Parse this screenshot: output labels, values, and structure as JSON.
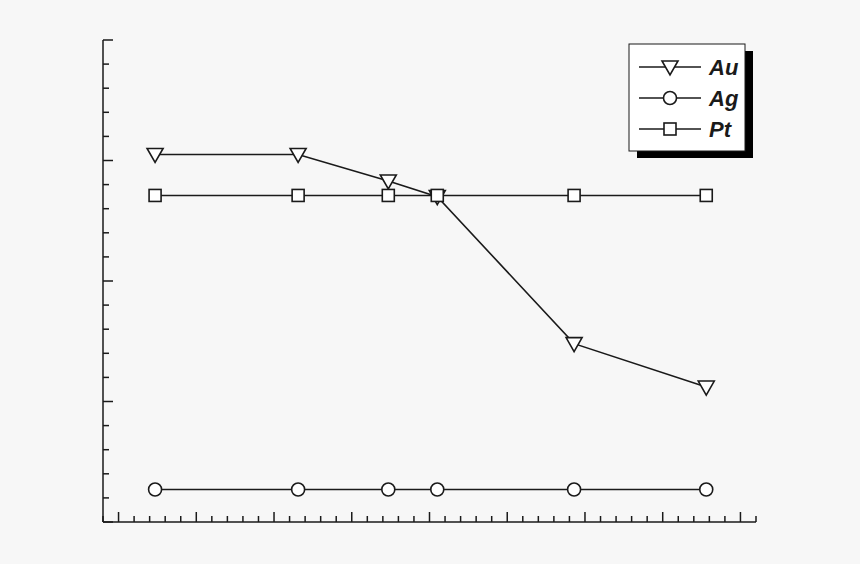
{
  "chart_data": {
    "type": "line",
    "x": [
      0.47,
      2.31,
      3.47,
      4.1,
      5.86,
      7.56
    ],
    "series": [
      {
        "name": "Au",
        "color": "#1a1a1a",
        "marker": "triangle-down",
        "values": [
          3.05,
          3.05,
          2.83,
          2.7,
          1.48,
          1.12
        ]
      },
      {
        "name": "Ag",
        "color": "#1a1a1a",
        "marker": "circle",
        "values": [
          0.27,
          0.27,
          0.27,
          0.27,
          0.27,
          0.27
        ]
      },
      {
        "name": "Pt",
        "color": "#1a1a1a",
        "marker": "square",
        "values": [
          2.71,
          2.71,
          2.71,
          2.71,
          2.71,
          2.71
        ]
      }
    ],
    "xlim": [
      -0.2,
      8.2
    ],
    "xticks": [
      -0.2,
      0,
      0.2,
      0.4,
      0.6,
      0.8,
      1,
      1.2,
      1.4,
      1.6,
      1.8,
      2,
      2.2,
      2.4,
      2.6,
      2.8,
      3,
      3.2,
      3.4,
      3.6,
      3.8,
      4,
      4.2,
      4.4,
      4.6,
      4.8,
      5,
      5.2,
      5.4,
      5.6,
      5.8,
      6,
      6.2,
      6.4,
      6.6,
      6.8,
      7,
      7.2,
      7.4,
      7.6,
      7.8,
      8,
      8.2
    ],
    "ylim": [
      0,
      4
    ],
    "yticks": [
      0,
      0.2,
      0.4,
      0.6,
      0.8,
      1,
      1.2,
      1.4,
      1.6,
      1.8,
      2,
      2.2,
      2.4,
      2.6,
      2.8,
      3,
      3.2,
      3.4,
      3.6,
      3.8,
      4
    ],
    "tick_labels": false,
    "grid": false,
    "legend": "upper right"
  }
}
